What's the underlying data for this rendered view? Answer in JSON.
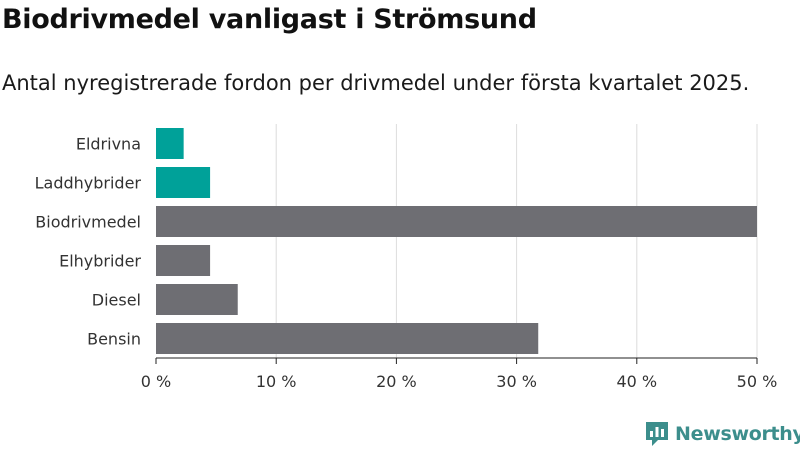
{
  "title": "Biodrivmedel vanligast i Strömsund",
  "subtitle": "Antal nyregistrerade fordon per drivmedel under första kvartalet 2025.",
  "brand": "Newsworthy",
  "colors": {
    "highlight": "#00a199",
    "default": "#6e6e73",
    "gridline": "#dcdcdc",
    "axis": "#222222",
    "brand": "#3c8e8c"
  },
  "icons": [
    "newsworthy-logo-icon"
  ],
  "chart_data": {
    "type": "bar",
    "orientation": "horizontal",
    "categories": [
      "Eldrivna",
      "Laddhybrider",
      "Biodrivmedel",
      "Elhybrider",
      "Diesel",
      "Bensin"
    ],
    "values": [
      2.3,
      4.5,
      50.0,
      4.5,
      6.8,
      31.8
    ],
    "highlighted": [
      true,
      true,
      false,
      false,
      false,
      false
    ],
    "unit": "%",
    "xlim": [
      0,
      50
    ],
    "xticks": [
      0,
      10,
      20,
      30,
      40,
      50
    ],
    "xtick_labels": [
      "0 %",
      "10 %",
      "20 %",
      "30 %",
      "40 %",
      "50 %"
    ],
    "grid": true
  }
}
